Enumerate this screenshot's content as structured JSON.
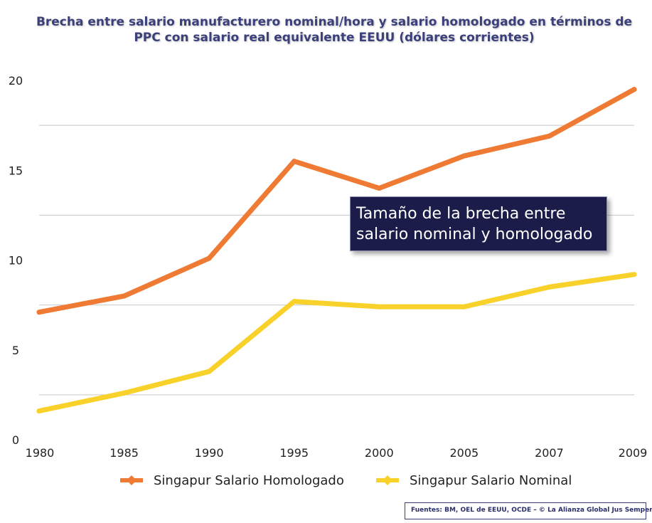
{
  "chart_data": {
    "type": "line",
    "title": "Brecha entre salario manufacturero nominal/hora y salario homologado en términos de PPC con salario real equivalente EEUU (dólares corrientes)",
    "categories": [
      "1980",
      "1985",
      "1990",
      "1995",
      "2000",
      "2005",
      "2007",
      "2009"
    ],
    "series": [
      {
        "name": "Singapur Salario Homologado",
        "color": "#ee7a33",
        "values": [
          7.1,
          8.0,
          10.1,
          15.5,
          14.0,
          15.8,
          16.9,
          19.5
        ]
      },
      {
        "name": "Singapur Salario Nominal",
        "color": "#f8d12a",
        "values": [
          1.6,
          2.6,
          3.8,
          7.7,
          7.4,
          7.4,
          8.5,
          9.2
        ]
      }
    ],
    "yticks": [
      "0",
      "5",
      "10",
      "15",
      "20"
    ],
    "ylim": [
      0,
      20
    ],
    "xlabel": "",
    "ylabel": "",
    "grid": true,
    "legend_position": "bottom",
    "annotation": {
      "lines": [
        "Tamaño de la brecha entre",
        "salario nominal y homologado"
      ]
    }
  },
  "title_lines": [
    "Brecha entre salario manufacturero nominal/hora y salario homologado en términos de",
    "PPC con salario real equivalente EEUU (dólares corrientes)"
  ],
  "source": "Fuentes: BM, OEL de EEUU, OCDE – © La Alianza Global Jus Semper"
}
